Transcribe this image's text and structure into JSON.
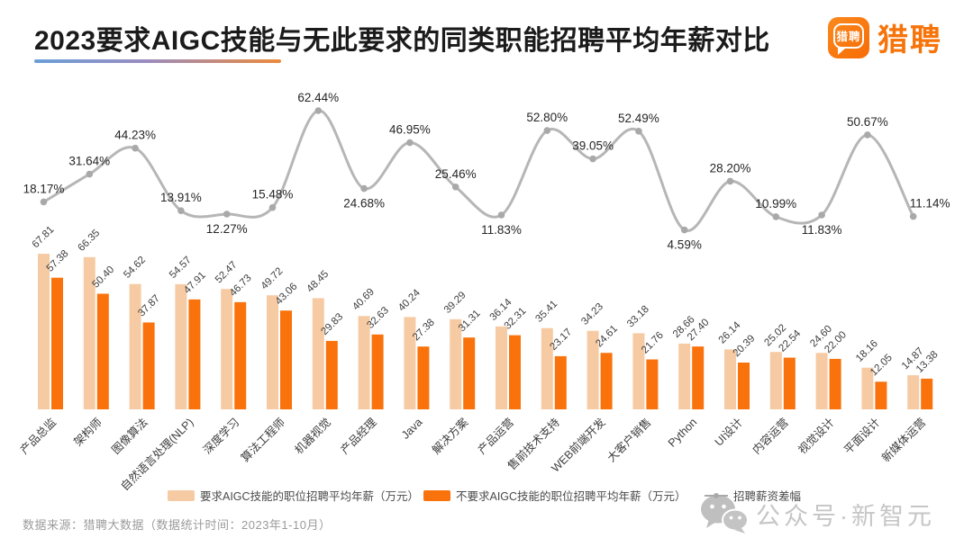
{
  "header": {
    "title": "2023要求AIGC技能与无此要求的同类职能招聘平均年薪对比",
    "brand_name": "猎聘",
    "brand_icon_text": "猎聘"
  },
  "chart_data": {
    "type": "bar",
    "subtype": "grouped bars with percentage line overlay",
    "unit": "万元",
    "value_labels": "on",
    "legend_position": "bottom",
    "categories": [
      "产品总监",
      "架构师",
      "图像算法",
      "自然语言处理(NLP)",
      "深度学习",
      "算法工程师",
      "机器视觉",
      "产品经理",
      "Java",
      "解决方案",
      "产品运营",
      "售前技术支持",
      "WEB前端开发",
      "大客户销售",
      "Python",
      "UI设计",
      "内容运营",
      "视觉设计",
      "平面设计",
      "新媒体运营"
    ],
    "series": [
      {
        "name": "要求AIGC技能的职位招聘平均年薪（万元）",
        "type": "bar",
        "color": "#F6CBA4",
        "values": [
          67.81,
          66.35,
          54.62,
          54.57,
          52.47,
          49.72,
          48.45,
          40.69,
          40.24,
          39.29,
          36.14,
          35.41,
          34.23,
          33.18,
          28.66,
          26.14,
          25.02,
          24.6,
          18.16,
          14.87
        ]
      },
      {
        "name": "不要求AIGC技能的职位招聘平均年薪（万元）",
        "type": "bar",
        "color": "#F9720B",
        "values": [
          57.38,
          50.4,
          37.87,
          47.91,
          46.73,
          43.06,
          29.83,
          32.63,
          27.38,
          31.31,
          32.31,
          23.17,
          24.61,
          21.76,
          27.4,
          20.39,
          22.54,
          22.0,
          12.05,
          13.38
        ]
      },
      {
        "name": "招聘薪资差幅",
        "type": "line",
        "color": "#B6B6B6",
        "point_color": "#A9A9A9",
        "unit": "%",
        "values": [
          18.17,
          31.64,
          44.23,
          13.91,
          12.27,
          15.48,
          62.44,
          24.68,
          46.95,
          25.46,
          11.83,
          52.8,
          39.05,
          52.49,
          4.59,
          28.2,
          10.99,
          11.83,
          50.67,
          11.14
        ],
        "label_placement": [
          "above",
          "above",
          "above",
          "above",
          "below",
          "above",
          "above",
          "below",
          "above",
          "above",
          "below",
          "above",
          "above",
          "above",
          "below",
          "above",
          "above",
          "below",
          "above",
          "right"
        ]
      }
    ]
  },
  "legend": {
    "items": [
      {
        "label": "要求AIGC技能的职位招聘平均年薪（万元）",
        "swatch": "#F6CBA4",
        "marker": "bar"
      },
      {
        "label": "不要求AIGC技能的职位招聘平均年薪（万元）",
        "swatch": "#F9720B",
        "marker": "bar"
      },
      {
        "label": "招聘薪资差幅",
        "swatch": "#A9A9A9",
        "marker": "line"
      }
    ]
  },
  "watermark": {
    "text": "公众号·新智元",
    "icon": "wechat-icon"
  },
  "footer": {
    "source": "数据来源：猎聘大数据（数据统计时间：2023年1-10月）"
  }
}
